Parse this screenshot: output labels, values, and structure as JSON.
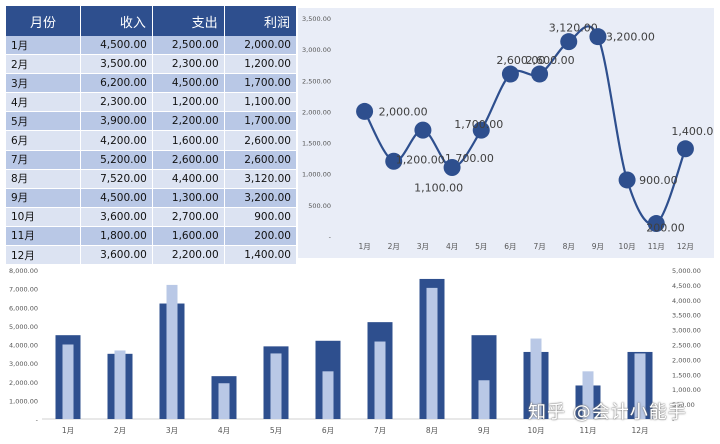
{
  "table": {
    "headers": [
      "月份",
      "收入",
      "支出",
      "利润"
    ],
    "rows": [
      [
        "1月",
        "4,500.00",
        "2,500.00",
        "2,000.00"
      ],
      [
        "2月",
        "3,500.00",
        "2,300.00",
        "1,200.00"
      ],
      [
        "3月",
        "6,200.00",
        "4,500.00",
        "1,700.00"
      ],
      [
        "4月",
        "2,300.00",
        "1,200.00",
        "1,100.00"
      ],
      [
        "5月",
        "3,900.00",
        "2,200.00",
        "1,700.00"
      ],
      [
        "6月",
        "4,200.00",
        "1,600.00",
        "2,600.00"
      ],
      [
        "7月",
        "5,200.00",
        "2,600.00",
        "2,600.00"
      ],
      [
        "8月",
        "7,520.00",
        "4,400.00",
        "3,120.00"
      ],
      [
        "9月",
        "4,500.00",
        "1,300.00",
        "3,200.00"
      ],
      [
        "10月",
        "3,600.00",
        "2,700.00",
        "900.00"
      ],
      [
        "11月",
        "1,800.00",
        "1,600.00",
        "200.00"
      ],
      [
        "12月",
        "3,600.00",
        "2,200.00",
        "1,400.00"
      ]
    ]
  },
  "chart_data": [
    {
      "type": "line",
      "categories": [
        "1月",
        "2月",
        "3月",
        "4月",
        "5月",
        "6月",
        "7月",
        "8月",
        "9月",
        "10月",
        "11月",
        "12月"
      ],
      "series": [
        {
          "name": "利润",
          "values": [
            2000,
            1200,
            1700,
            1100,
            1700,
            2600,
            2600,
            3120,
            3200,
            900,
            200,
            1400
          ]
        }
      ],
      "data_labels": [
        "2,000.00",
        "1,200.00",
        "1,700.00",
        "1,100.00",
        "1,700.00",
        "2,600.00",
        "2,600.00",
        "3,120.00",
        "3,200.00",
        "900.00",
        "200.00",
        "1,400.00"
      ],
      "ylim": [
        0,
        3500
      ],
      "y_ticks": [
        "-",
        "500.00",
        "1,000.00",
        "1,500.00",
        "2,000.00",
        "2,500.00",
        "3,000.00",
        "3,500.00"
      ],
      "smooth": true,
      "colors": {
        "line": "#2e4f8e",
        "marker": "#2e4f8e",
        "background": "#e9edf7"
      }
    },
    {
      "type": "bar",
      "categories": [
        "1月",
        "2月",
        "3月",
        "4月",
        "5月",
        "6月",
        "7月",
        "8月",
        "9月",
        "10月",
        "11月",
        "12月"
      ],
      "series": [
        {
          "name": "收入",
          "axis": "left",
          "values": [
            4500,
            3500,
            6200,
            2300,
            3900,
            4200,
            5200,
            7520,
            4500,
            3600,
            1800,
            3600
          ]
        },
        {
          "name": "支出",
          "axis": "right",
          "values": [
            2500,
            2300,
            4500,
            1200,
            2200,
            1600,
            2600,
            4400,
            1300,
            2700,
            1600,
            2200
          ]
        }
      ],
      "ylim_left": [
        0,
        8000
      ],
      "ylim_right": [
        0,
        5000
      ],
      "y_ticks_left": [
        "-",
        "1,000.00",
        "2,000.00",
        "3,000.00",
        "4,000.00",
        "5,000.00",
        "6,000.00",
        "7,000.00",
        "8,000.00"
      ],
      "y_ticks_right": [
        "-",
        "500.00",
        "1,000.00",
        "1,500.00",
        "2,000.00",
        "2,500.00",
        "3,000.00",
        "3,500.00",
        "4,000.00",
        "4,500.00",
        "5,000.00"
      ],
      "colors": {
        "income": "#2e4f8e",
        "expense": "#b9c8e6"
      }
    }
  ],
  "watermark": "知乎 @会计小能手"
}
